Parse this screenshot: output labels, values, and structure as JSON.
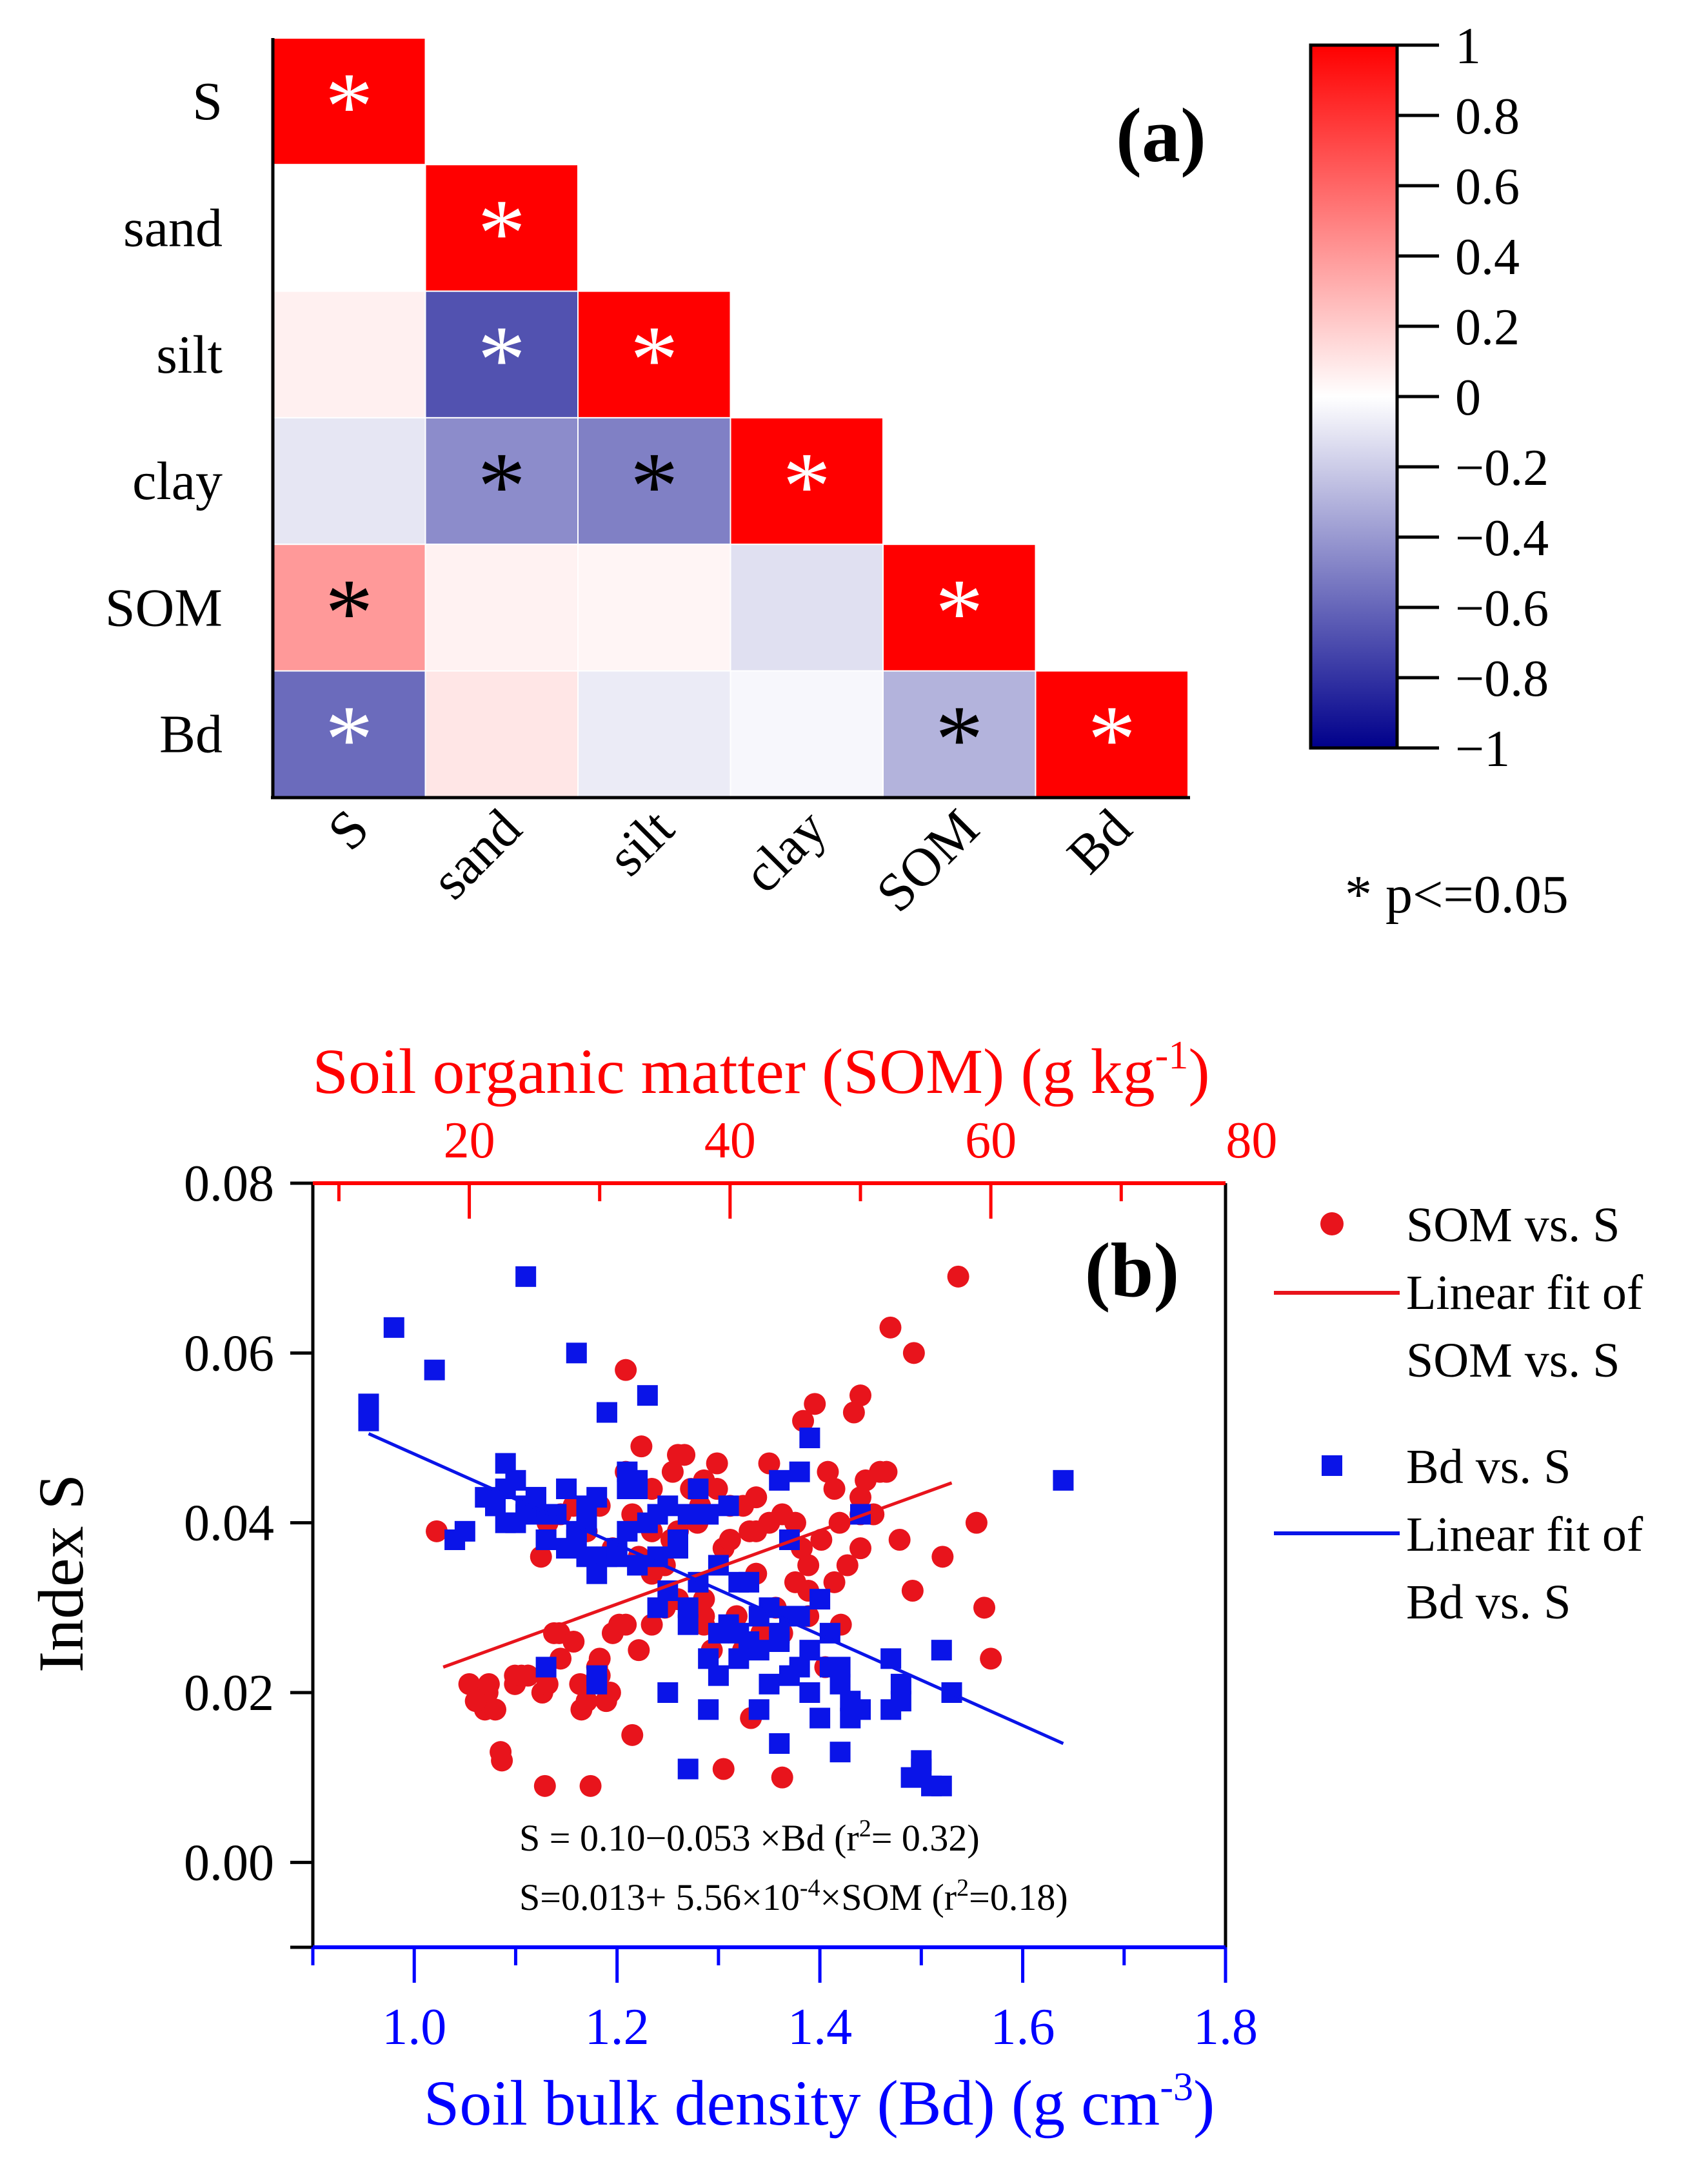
{
  "chart_data": [
    {
      "type": "heatmap",
      "panel_label": "(a)",
      "variables": [
        "S",
        "sand",
        "silt",
        "clay",
        "SOM",
        "Bd"
      ],
      "matrix": [
        [
          1.0,
          null,
          null,
          null,
          null,
          null
        ],
        [
          0.0,
          1.0,
          null,
          null,
          null,
          null
        ],
        [
          0.06,
          -0.68,
          1.0,
          null,
          null,
          null
        ],
        [
          -0.1,
          -0.45,
          -0.5,
          1.0,
          null,
          null
        ],
        [
          0.4,
          0.05,
          0.04,
          -0.12,
          1.0,
          null
        ],
        [
          -0.58,
          0.1,
          -0.08,
          -0.03,
          -0.3,
          1.0
        ]
      ],
      "significant": [
        [
          true,
          false,
          false,
          false,
          false,
          false
        ],
        [
          false,
          true,
          false,
          false,
          false,
          false
        ],
        [
          false,
          true,
          true,
          false,
          false,
          false
        ],
        [
          false,
          true,
          true,
          true,
          false,
          false
        ],
        [
          true,
          false,
          false,
          false,
          true,
          false
        ],
        [
          true,
          false,
          false,
          false,
          true,
          true
        ]
      ],
      "star_symbol": "*",
      "colorbar": {
        "range": [
          -1,
          1
        ],
        "ticks": [
          1,
          0.8,
          0.6,
          0.4,
          0.2,
          0,
          -0.2,
          -0.4,
          -0.6,
          -0.8,
          -1
        ],
        "tick_labels": [
          "1",
          "0.8",
          "0.6",
          "0.4",
          "0.2",
          "0",
          "−0.2",
          "−0.4",
          "−0.6",
          "−0.8",
          "−1"
        ],
        "color_max": "#ff0000",
        "color_mid": "#ffffff",
        "color_min": "#00008b"
      },
      "significance_note": "* p<=0.05"
    },
    {
      "type": "scatter",
      "panel_label": "(b)",
      "ylabel": "Index S",
      "ylim": [
        -0.01,
        0.08
      ],
      "yticks": [
        0.0,
        0.02,
        0.04,
        0.06,
        0.08
      ],
      "ytick_labels": [
        "0.00",
        "0.02",
        "0.04",
        "0.06",
        "0.08"
      ],
      "top_axis": {
        "label": "Soil organic matter (SOM) (g kg",
        "label_sup": "-1",
        "label_end": ")",
        "range": [
          8,
          78
        ],
        "ticks": [
          20,
          40,
          60,
          80
        ],
        "tick_labels": [
          "20",
          "40",
          "60",
          "80"
        ],
        "color": "#ff0000"
      },
      "bottom_axis": {
        "label": "Soil bulk density (Bd) (g cm",
        "label_sup": "-3",
        "label_end": ")",
        "range": [
          0.9,
          1.8
        ],
        "ticks": [
          1.0,
          1.2,
          1.4,
          1.6,
          1.8
        ],
        "tick_labels": [
          "1.0",
          "1.2",
          "1.4",
          "1.6",
          "1.8"
        ],
        "color": "#0000ff"
      },
      "legend": {
        "som_points": "SOM vs. S",
        "som_fit_1": "Linear fit of",
        "som_fit_2": "SOM vs. S",
        "bd_points": "Bd vs. S",
        "bd_fit_1": "Linear fit of",
        "bd_fit_2": "Bd vs. S"
      },
      "equations": {
        "bd_a": "S = 0.10−0.053 ×Bd (r",
        "bd_sup": "2",
        "bd_b": "= 0.32)",
        "som_a": "S=0.013+ 5.56×10",
        "som_sup1": "-4",
        "som_b": "×SOM (r",
        "som_sup2": "2",
        "som_c": "=0.18)"
      },
      "series": [
        {
          "name": "SOM vs. S",
          "axis": "top",
          "marker": "circle",
          "color": "#e8141c",
          "x": [
            17.5,
            20.0,
            21.2,
            21.4,
            22.4,
            23.5,
            24.5,
            25.6,
            25.8,
            26.9,
            28.6,
            29.3,
            29.8,
            30.8,
            31.5,
            32.0,
            33.2,
            35.6,
            36.5,
            37.7,
            38.6,
            39.5,
            40.5,
            41.6,
            42.4,
            44.0,
            45.6,
            46.5,
            47.3,
            48.4,
            49.5,
            50.0,
            50.4,
            51.5,
            52.3,
            53.0,
            54.1,
            56.3,
            57.5,
            58.9,
            59.5,
            60.0,
            39.0,
            41.0,
            43.0,
            45.0,
            47.0,
            49.0,
            50.0,
            51.0,
            21.5,
            23.5,
            25.5,
            27.0,
            29.0,
            31.0,
            32.5,
            34.0,
            35.5,
            37.5,
            39.5,
            41.5,
            43.5,
            45.5,
            47.5,
            48.5,
            33.0,
            35.0,
            37.0,
            40.0,
            42.0,
            44.0,
            46.0,
            48.0,
            26.0,
            28.0,
            30.0,
            32.0,
            34.0,
            36.0,
            38.0,
            36.0,
            38.0,
            40.0,
            42.0,
            44.0,
            46.0,
            48.0,
            50.0,
            52.0,
            20.5,
            22.5,
            24.5,
            26.5,
            28.5,
            30.5,
            32.5,
            22.0,
            24.0,
            26.0,
            28.0,
            30.0,
            32.0,
            34.0,
            36.0,
            39.0,
            43.0,
            27.0,
            29.0,
            31.0,
            33.0,
            35.0,
            38.0,
            41.0,
            45.0,
            30.0,
            34.0,
            38.0,
            42.0,
            46.0,
            50.0,
            54.0
          ],
          "y": [
            0.039,
            0.021,
            0.018,
            0.02,
            0.013,
            0.021,
            0.022,
            0.02,
            0.009,
            0.027,
            0.018,
            0.009,
            0.023,
            0.02,
            0.028,
            0.058,
            0.049,
            0.046,
            0.048,
            0.042,
            0.025,
            0.011,
            0.029,
            0.017,
            0.027,
            0.01,
            0.052,
            0.054,
            0.023,
            0.04,
            0.053,
            0.055,
            0.045,
            0.046,
            0.063,
            0.038,
            0.06,
            0.036,
            0.069,
            0.04,
            0.03,
            0.024,
            0.044,
            0.042,
            0.047,
            0.04,
            0.038,
            0.035,
            0.043,
            0.041,
            0.021,
            0.022,
            0.036,
            0.041,
            0.039,
            0.037,
            0.041,
            0.039,
            0.038,
            0.04,
            0.037,
            0.039,
            0.03,
            0.037,
            0.046,
            0.028,
            0.036,
            0.035,
            0.044,
            0.042,
            0.039,
            0.041,
            0.032,
            0.044,
            0.021,
            0.026,
            0.022,
            0.028,
            0.034,
            0.031,
            0.028,
            0.048,
            0.045,
            0.038,
            0.043,
            0.027,
            0.035,
            0.033,
            0.041,
            0.046,
            0.019,
            0.012,
            0.022,
            0.027,
            0.021,
            0.019,
            0.015,
            0.018,
            0.022,
            0.04,
            0.042,
            0.042,
            0.046,
            0.044,
            0.039,
            0.047,
            0.04,
            0.024,
            0.019,
            0.027,
            0.025,
            0.03,
            0.029,
            0.025,
            0.033,
            0.024,
            0.028,
            0.031,
            0.034,
            0.029,
            0.037,
            0.032
          ],
          "fit": {
            "x": [
              18,
              57
            ],
            "y": [
              0.023,
              0.0447
            ]
          }
        },
        {
          "name": "Bd vs. S",
          "axis": "bottom",
          "marker": "square",
          "color": "#0a14e8",
          "x": [
            0.955,
            0.955,
            0.98,
            1.02,
            1.04,
            1.05,
            1.08,
            1.09,
            1.1,
            1.11,
            1.13,
            1.13,
            1.16,
            1.17,
            1.18,
            1.18,
            1.19,
            1.21,
            1.22,
            1.23,
            1.24,
            1.25,
            1.26,
            1.27,
            1.28,
            1.29,
            1.3,
            1.31,
            1.32,
            1.33,
            1.34,
            1.35,
            1.36,
            1.36,
            1.37,
            1.38,
            1.39,
            1.4,
            1.41,
            1.42,
            1.43,
            1.44,
            1.47,
            1.48,
            1.49,
            1.5,
            1.51,
            1.52,
            1.53,
            1.64,
            1.07,
            1.08,
            1.09,
            1.1,
            1.11,
            1.12,
            1.13,
            1.14,
            1.15,
            1.16,
            1.17,
            1.18,
            1.19,
            1.2,
            1.21,
            1.22,
            1.23,
            1.24,
            1.25,
            1.26,
            1.27,
            1.28,
            1.29,
            1.3,
            1.31,
            1.32,
            1.33,
            1.34,
            1.35,
            1.36,
            1.37,
            1.38,
            1.39,
            1.4,
            1.41,
            1.42,
            1.09,
            1.12,
            1.15,
            1.18,
            1.21,
            1.24,
            1.27,
            1.3,
            1.33,
            1.36,
            1.39,
            1.42,
            1.13,
            1.17,
            1.2,
            1.25,
            1.29,
            1.34,
            1.38,
            1.44,
            1.47,
            1.5,
            1.11,
            1.16,
            1.22,
            1.27,
            1.32,
            1.37,
            1.43,
            1.48,
            1.52
          ],
          "y": [
            0.054,
            0.052,
            0.063,
            0.058,
            0.038,
            0.039,
            0.042,
            0.047,
            0.045,
            0.069,
            0.023,
            0.041,
            0.06,
            0.036,
            0.021,
            0.022,
            0.053,
            0.046,
            0.044,
            0.055,
            0.03,
            0.02,
            0.038,
            0.011,
            0.044,
            0.018,
            0.022,
            0.042,
            0.027,
            0.026,
            0.018,
            0.021,
            0.045,
            0.014,
            0.029,
            0.046,
            0.05,
            0.017,
            0.023,
            0.013,
            0.017,
            0.041,
            0.018,
            0.021,
            0.01,
            0.011,
            0.009,
            0.009,
            0.02,
            0.045,
            0.043,
            0.042,
            0.044,
            0.04,
            0.041,
            0.043,
            0.038,
            0.041,
            0.037,
            0.039,
            0.042,
            0.034,
            0.036,
            0.037,
            0.039,
            0.045,
            0.04,
            0.036,
            0.042,
            0.037,
            0.041,
            0.033,
            0.041,
            0.035,
            0.028,
            0.033,
            0.033,
            0.029,
            0.03,
            0.026,
            0.038,
            0.029,
            0.025,
            0.031,
            0.027,
            0.023,
            0.04,
            0.043,
            0.044,
            0.043,
            0.044,
            0.041,
            0.03,
            0.027,
            0.026,
            0.027,
            0.02,
            0.021,
            0.038,
            0.04,
            0.036,
            0.032,
            0.024,
            0.025,
            0.023,
            0.018,
            0.024,
            0.012,
            0.042,
            0.038,
            0.035,
            0.028,
            0.024,
            0.022,
            0.019,
            0.019,
            0.025
          ],
          "fit": {
            "x": [
              0.955,
              1.64
            ],
            "y": [
              0.0505,
              0.014
            ]
          }
        }
      ]
    }
  ]
}
